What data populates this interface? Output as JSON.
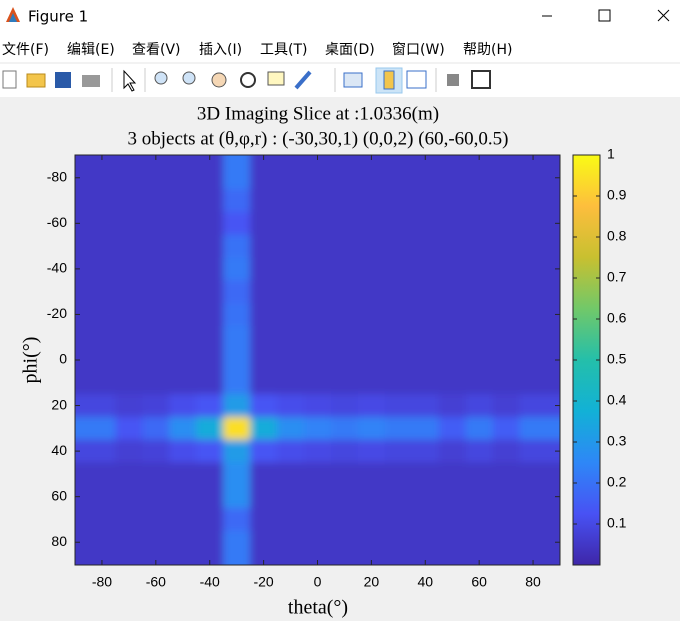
{
  "window": {
    "title": "Figure 1"
  },
  "menu": [
    "文件(F)",
    "编辑(E)",
    "查看(V)",
    "插入(I)",
    "工具(T)",
    "桌面(D)",
    "窗口(W)",
    "帮助(H)"
  ],
  "chart_data": {
    "type": "heatmap",
    "title": "3D Imaging Slice at :1.0336(m)",
    "subtitle": "3 objects at (θ,φ,r) : (-30,30,1) (0,0,2) (60,-60,0.5)",
    "xlabel": "theta(°)",
    "ylabel": "phi(°)",
    "x": [
      -90,
      -80,
      -70,
      -60,
      -50,
      -40,
      -30,
      -20,
      -10,
      0,
      10,
      20,
      30,
      40,
      50,
      60,
      70,
      80,
      90
    ],
    "y": [
      -90,
      -80,
      -70,
      -60,
      -50,
      -40,
      -30,
      -20,
      -10,
      0,
      10,
      20,
      30,
      40,
      50,
      60,
      70,
      80,
      90
    ],
    "values": [
      [
        0.05,
        0.05,
        0.05,
        0.05,
        0.05,
        0.05,
        0.22,
        0.05,
        0.05,
        0.05,
        0.05,
        0.05,
        0.05,
        0.05,
        0.05,
        0.05,
        0.05,
        0.05,
        0.05
      ],
      [
        0.05,
        0.05,
        0.05,
        0.05,
        0.05,
        0.05,
        0.22,
        0.05,
        0.05,
        0.05,
        0.05,
        0.05,
        0.05,
        0.05,
        0.05,
        0.05,
        0.05,
        0.05,
        0.05
      ],
      [
        0.05,
        0.05,
        0.05,
        0.05,
        0.05,
        0.05,
        0.18,
        0.05,
        0.05,
        0.05,
        0.05,
        0.05,
        0.05,
        0.05,
        0.05,
        0.05,
        0.05,
        0.05,
        0.05
      ],
      [
        0.05,
        0.05,
        0.05,
        0.05,
        0.05,
        0.05,
        0.13,
        0.05,
        0.05,
        0.05,
        0.05,
        0.05,
        0.05,
        0.05,
        0.05,
        0.05,
        0.05,
        0.05,
        0.05
      ],
      [
        0.05,
        0.05,
        0.05,
        0.05,
        0.05,
        0.05,
        0.2,
        0.05,
        0.05,
        0.05,
        0.05,
        0.05,
        0.05,
        0.05,
        0.05,
        0.05,
        0.05,
        0.05,
        0.05
      ],
      [
        0.05,
        0.05,
        0.05,
        0.05,
        0.05,
        0.05,
        0.22,
        0.05,
        0.05,
        0.05,
        0.05,
        0.05,
        0.05,
        0.05,
        0.05,
        0.05,
        0.05,
        0.05,
        0.05
      ],
      [
        0.05,
        0.05,
        0.05,
        0.05,
        0.05,
        0.05,
        0.18,
        0.05,
        0.05,
        0.05,
        0.05,
        0.05,
        0.05,
        0.05,
        0.05,
        0.05,
        0.05,
        0.05,
        0.05
      ],
      [
        0.05,
        0.05,
        0.05,
        0.05,
        0.05,
        0.05,
        0.2,
        0.05,
        0.05,
        0.05,
        0.05,
        0.05,
        0.05,
        0.05,
        0.05,
        0.05,
        0.05,
        0.05,
        0.05
      ],
      [
        0.05,
        0.05,
        0.05,
        0.05,
        0.05,
        0.05,
        0.22,
        0.05,
        0.05,
        0.05,
        0.05,
        0.05,
        0.05,
        0.05,
        0.05,
        0.05,
        0.05,
        0.05,
        0.05
      ],
      [
        0.05,
        0.05,
        0.05,
        0.05,
        0.05,
        0.05,
        0.22,
        0.05,
        0.05,
        0.05,
        0.05,
        0.05,
        0.05,
        0.05,
        0.05,
        0.05,
        0.05,
        0.05,
        0.05
      ],
      [
        0.05,
        0.05,
        0.05,
        0.05,
        0.05,
        0.05,
        0.22,
        0.05,
        0.05,
        0.05,
        0.05,
        0.05,
        0.05,
        0.05,
        0.05,
        0.05,
        0.05,
        0.05,
        0.05
      ],
      [
        0.09,
        0.09,
        0.07,
        0.08,
        0.11,
        0.13,
        0.31,
        0.13,
        0.11,
        0.1,
        0.09,
        0.1,
        0.09,
        0.09,
        0.07,
        0.09,
        0.07,
        0.09,
        0.09
      ],
      [
        0.22,
        0.22,
        0.13,
        0.18,
        0.27,
        0.36,
        0.94,
        0.36,
        0.27,
        0.24,
        0.22,
        0.24,
        0.22,
        0.22,
        0.15,
        0.22,
        0.15,
        0.22,
        0.22
      ],
      [
        0.09,
        0.09,
        0.07,
        0.08,
        0.11,
        0.13,
        0.31,
        0.13,
        0.11,
        0.1,
        0.09,
        0.1,
        0.09,
        0.09,
        0.07,
        0.09,
        0.07,
        0.09,
        0.09
      ],
      [
        0.05,
        0.05,
        0.05,
        0.05,
        0.05,
        0.05,
        0.27,
        0.05,
        0.05,
        0.05,
        0.05,
        0.05,
        0.05,
        0.05,
        0.05,
        0.05,
        0.05,
        0.05,
        0.05
      ],
      [
        0.05,
        0.05,
        0.05,
        0.05,
        0.05,
        0.05,
        0.27,
        0.05,
        0.05,
        0.05,
        0.05,
        0.05,
        0.05,
        0.05,
        0.05,
        0.05,
        0.05,
        0.05,
        0.05
      ],
      [
        0.05,
        0.05,
        0.05,
        0.05,
        0.05,
        0.05,
        0.18,
        0.05,
        0.05,
        0.05,
        0.05,
        0.05,
        0.05,
        0.05,
        0.05,
        0.05,
        0.05,
        0.05,
        0.05
      ],
      [
        0.05,
        0.05,
        0.05,
        0.05,
        0.05,
        0.05,
        0.22,
        0.05,
        0.05,
        0.05,
        0.05,
        0.05,
        0.05,
        0.05,
        0.05,
        0.05,
        0.05,
        0.05,
        0.05
      ],
      [
        0.05,
        0.05,
        0.05,
        0.05,
        0.05,
        0.05,
        0.22,
        0.05,
        0.05,
        0.05,
        0.05,
        0.05,
        0.05,
        0.05,
        0.05,
        0.05,
        0.05,
        0.05,
        0.05
      ]
    ],
    "xlim": [
      -90,
      90
    ],
    "ylim": [
      -90,
      90
    ],
    "yreverse": true,
    "xticks": [
      -80,
      -60,
      -40,
      -20,
      0,
      20,
      40,
      60,
      80
    ],
    "yticks": [
      -80,
      -60,
      -40,
      -20,
      0,
      20,
      40,
      60,
      80
    ],
    "clim": [
      0,
      1
    ],
    "cticks": [
      0.1,
      0.2,
      0.3,
      0.4,
      0.5,
      0.6,
      0.7,
      0.8,
      0.9,
      1
    ],
    "colormap": "parula"
  }
}
